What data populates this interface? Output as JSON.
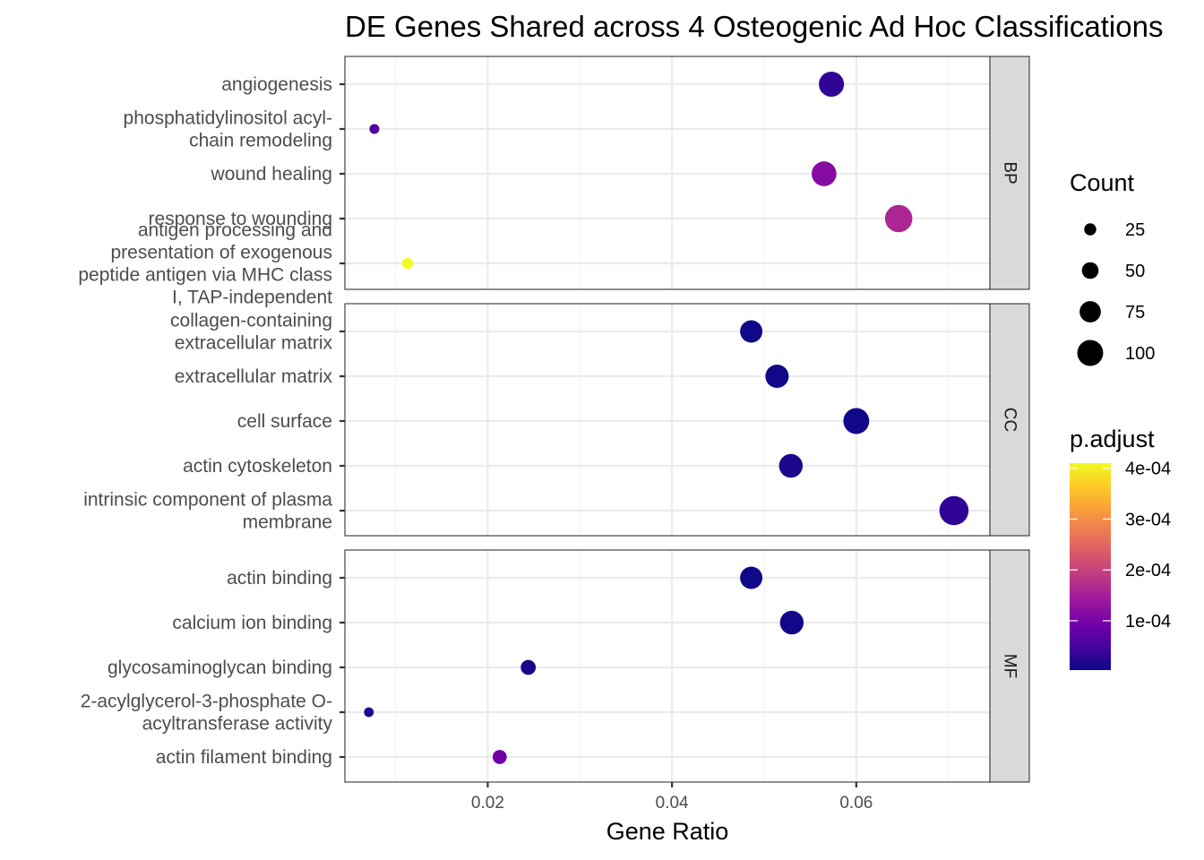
{
  "chart_data": {
    "type": "scatter",
    "title": "DE Genes Shared across 4 Osteogenic Ad Hoc Classifications",
    "xlabel": "Gene Ratio",
    "ylabel": "",
    "xlim": [
      0.0045,
      0.0745
    ],
    "x_ticks": [
      {
        "value": 0.02,
        "label": "0.02"
      },
      {
        "value": 0.04,
        "label": "0.04"
      },
      {
        "value": 0.06,
        "label": "0.06"
      }
    ],
    "grid": true,
    "panels": [
      {
        "strip": "BP",
        "terms": [
          {
            "label": [
              "angiogenesis"
            ],
            "gene_ratio": 0.0573,
            "count": 96,
            "p_adjust": 3e-05
          },
          {
            "label": [
              "phosphatidylinositol acyl-",
              "chain remodeling"
            ],
            "gene_ratio": 0.0077,
            "count": 13,
            "p_adjust": 6e-05
          },
          {
            "label": [
              "wound healing"
            ],
            "gene_ratio": 0.0565,
            "count": 94,
            "p_adjust": 0.000115
          },
          {
            "label": [
              "response to wounding"
            ],
            "gene_ratio": 0.0646,
            "count": 108,
            "p_adjust": 0.00016
          },
          {
            "label": [
              "antigen processing and",
              "presentation of exogenous",
              "peptide antigen via MHC class",
              "I, TAP-independent"
            ],
            "gene_ratio": 0.0113,
            "count": 19,
            "p_adjust": 0.00042
          }
        ]
      },
      {
        "strip": "CC",
        "terms": [
          {
            "label": [
              "collagen-containing",
              "extracellular matrix"
            ],
            "gene_ratio": 0.0486,
            "count": 81,
            "p_adjust": 5e-06
          },
          {
            "label": [
              "extracellular matrix"
            ],
            "gene_ratio": 0.0514,
            "count": 86,
            "p_adjust": 5e-06
          },
          {
            "label": [
              "cell surface"
            ],
            "gene_ratio": 0.06,
            "count": 100,
            "p_adjust": 6e-06
          },
          {
            "label": [
              "actin cytoskeleton"
            ],
            "gene_ratio": 0.0529,
            "count": 88,
            "p_adjust": 1.5e-05
          },
          {
            "label": [
              "intrinsic component of plasma",
              "membrane"
            ],
            "gene_ratio": 0.0706,
            "count": 118,
            "p_adjust": 3e-05
          }
        ]
      },
      {
        "strip": "MF",
        "terms": [
          {
            "label": [
              "actin binding"
            ],
            "gene_ratio": 0.0486,
            "count": 81,
            "p_adjust": 6e-06
          },
          {
            "label": [
              "calcium ion binding"
            ],
            "gene_ratio": 0.053,
            "count": 88,
            "p_adjust": 6e-06
          },
          {
            "label": [
              "glycosaminoglycan binding"
            ],
            "gene_ratio": 0.0244,
            "count": 41,
            "p_adjust": 1.2e-05
          },
          {
            "label": [
              "2-acylglycerol-3-phosphate O-",
              "acyltransferase activity"
            ],
            "gene_ratio": 0.0071,
            "count": 12,
            "p_adjust": 2e-05
          },
          {
            "label": [
              "actin filament binding"
            ],
            "gene_ratio": 0.0213,
            "count": 36,
            "p_adjust": 9e-05
          }
        ]
      }
    ],
    "legend_size": {
      "title": "Count",
      "entries": [
        {
          "value": 25,
          "label": "25"
        },
        {
          "value": 50,
          "label": "50"
        },
        {
          "value": 75,
          "label": "75"
        },
        {
          "value": 100,
          "label": "100"
        }
      ]
    },
    "legend_color": {
      "title": "p.adjust",
      "range": [
        3e-06,
        0.00041
      ],
      "palette": [
        "#0d0887",
        "#46039f",
        "#7201a8",
        "#9c179e",
        "#bd3786",
        "#d8576b",
        "#ed7953",
        "#fb9f3a",
        "#fdca26",
        "#f0f921"
      ],
      "entries": [
        {
          "value": 0.0001,
          "label": "1e-04"
        },
        {
          "value": 0.0002,
          "label": "2e-04"
        },
        {
          "value": 0.0003,
          "label": "3e-04"
        },
        {
          "value": 0.0004,
          "label": "4e-04"
        }
      ]
    },
    "legend_position": "right"
  }
}
